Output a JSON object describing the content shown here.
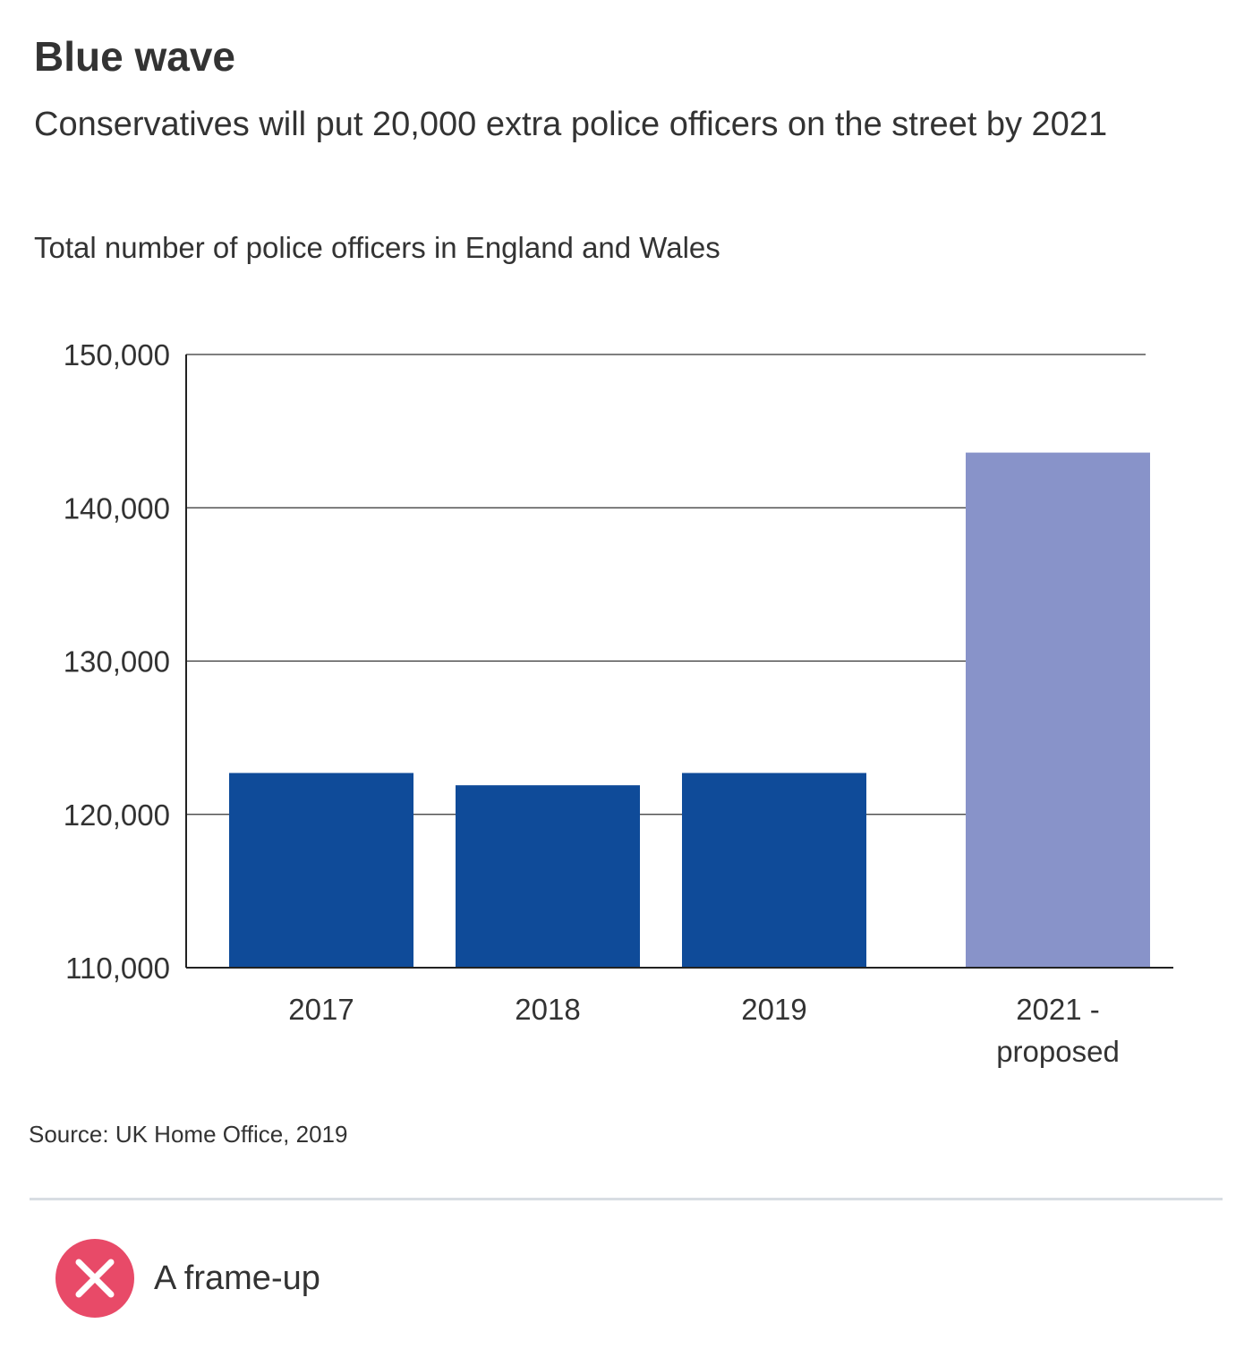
{
  "title": "Blue wave",
  "subtitle": "Conservatives will put 20,000 extra police officers on the street by 2021",
  "chart_label": "Total number of police officers in England and Wales",
  "source": "Source: UK Home Office, 2019",
  "verdict": {
    "label": "A frame-up",
    "icon": "x-mark-icon",
    "color": "#e84a68"
  },
  "colors": {
    "actual": "#0f4b99",
    "proposed": "#8893c9",
    "grid": "#333333"
  },
  "chart_data": {
    "type": "bar",
    "title": "Total number of police officers in England and Wales",
    "xlabel": "",
    "ylabel": "",
    "ylim": [
      110000,
      150000
    ],
    "yticks": [
      110000,
      120000,
      130000,
      140000,
      150000
    ],
    "ytick_labels": [
      "110,000",
      "120,000",
      "130,000",
      "140,000",
      "150,000"
    ],
    "grid": true,
    "categories": [
      {
        "label": [
          "2017"
        ],
        "value": 122700,
        "kind": "actual"
      },
      {
        "label": [
          "2018"
        ],
        "value": 121900,
        "kind": "actual"
      },
      {
        "label": [
          "2019"
        ],
        "value": 122700,
        "kind": "actual"
      },
      {
        "label": [
          "2021 -",
          "proposed"
        ],
        "value": 143600,
        "kind": "proposed"
      }
    ]
  }
}
